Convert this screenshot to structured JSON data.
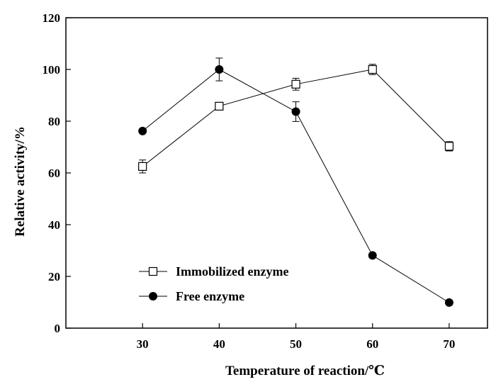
{
  "chart_data": {
    "type": "line",
    "xlabel": "Temperature of reaction/℃",
    "ylabel": "Relative activity/%",
    "x": [
      30,
      40,
      50,
      60,
      70
    ],
    "xlim": [
      20,
      75
    ],
    "ylim": [
      0,
      120
    ],
    "xticks": [
      "30",
      "40",
      "50",
      "60",
      "70"
    ],
    "yticks": [
      "0",
      "20",
      "40",
      "60",
      "80",
      "100",
      "120"
    ],
    "grid": false,
    "legend_position": "lower-left",
    "series": [
      {
        "name": "Immobilized enzyme",
        "marker": "open-square",
        "values": [
          62.5,
          85.8,
          94.3,
          100,
          70.3
        ],
        "errors": [
          2.5,
          1.2,
          2.3,
          2.0,
          1.8
        ]
      },
      {
        "name": "Free enzyme",
        "marker": "filled-circle",
        "values": [
          76.2,
          100,
          83.7,
          28.1,
          9.9
        ],
        "errors": [
          0,
          4.4,
          3.8,
          0.9,
          0
        ]
      }
    ]
  }
}
